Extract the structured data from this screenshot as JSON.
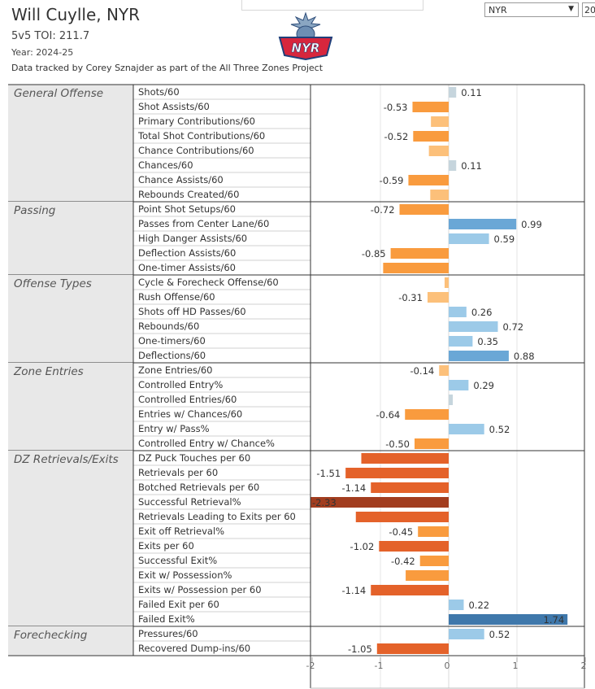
{
  "header": {
    "player": "Will Cuylle, NYR",
    "toi": "5v5 TOI: 211.7",
    "year": "Year: 2024-25",
    "credit": "Data tracked by Corey Sznajder as part of the All Three Zones Project"
  },
  "filters": {
    "team": "NYR",
    "year_partial": "20"
  },
  "logo": {
    "text": "NYR"
  },
  "colors": {
    "pos_light": "#9ccae8",
    "pos_mid": "#6aa7d6",
    "pos_dark": "#3f78ab",
    "neg_light": "#fcc07a",
    "neg_mid": "#f99b3e",
    "neg_dark": "#e4622a",
    "neg_deepest": "#a23d1f",
    "neutral": "#c6d5dd"
  },
  "chart_data": {
    "type": "bar",
    "orientation": "horizontal",
    "xlim": [
      -2,
      2
    ],
    "x_ticks": [
      "-2",
      "-1",
      "0",
      "1",
      "2"
    ],
    "groups": [
      {
        "name": "General Offense",
        "metrics": [
          {
            "label": "Shots/60",
            "value": 0.11,
            "value_label": "0.11"
          },
          {
            "label": "Shot Assists/60",
            "value": -0.53,
            "value_label": "-0.53"
          },
          {
            "label": "Primary Contributions/60",
            "value": -0.26,
            "value_label": ""
          },
          {
            "label": "Total Shot Contributions/60",
            "value": -0.52,
            "value_label": "-0.52"
          },
          {
            "label": "Chance Contributions/60",
            "value": -0.29,
            "value_label": ""
          },
          {
            "label": "Chances/60",
            "value": 0.11,
            "value_label": "0.11"
          },
          {
            "label": "Chance Assists/60",
            "value": -0.59,
            "value_label": "-0.59"
          },
          {
            "label": "Rebounds Created/60",
            "value": -0.27,
            "value_label": ""
          }
        ]
      },
      {
        "name": "Passing",
        "metrics": [
          {
            "label": "Point Shot Setups/60",
            "value": -0.72,
            "value_label": "-0.72"
          },
          {
            "label": "Passes from Center Lane/60",
            "value": 0.99,
            "value_label": "0.99"
          },
          {
            "label": "High Danger Assists/60",
            "value": 0.59,
            "value_label": "0.59"
          },
          {
            "label": "Deflection Assists/60",
            "value": -0.85,
            "value_label": "-0.85"
          },
          {
            "label": "One-timer Assists/60",
            "value": -0.96,
            "value_label": ""
          }
        ]
      },
      {
        "name": "Offense Types",
        "metrics": [
          {
            "label": "Cycle & Forecheck Offense/60",
            "value": -0.06,
            "value_label": ""
          },
          {
            "label": "Rush Offense/60",
            "value": -0.31,
            "value_label": "-0.31"
          },
          {
            "label": "Shots off HD Passes/60",
            "value": 0.26,
            "value_label": "0.26"
          },
          {
            "label": "Rebounds/60",
            "value": 0.72,
            "value_label": "0.72"
          },
          {
            "label": "One-timers/60",
            "value": 0.35,
            "value_label": "0.35"
          },
          {
            "label": "Deflections/60",
            "value": 0.88,
            "value_label": "0.88"
          }
        ]
      },
      {
        "name": "Zone Entries",
        "metrics": [
          {
            "label": "Zone Entries/60",
            "value": -0.14,
            "value_label": "-0.14"
          },
          {
            "label": "Controlled Entry%",
            "value": 0.29,
            "value_label": "0.29"
          },
          {
            "label": "Controlled Entries/60",
            "value": 0.06,
            "value_label": ""
          },
          {
            "label": "Entries w/ Chances/60",
            "value": -0.64,
            "value_label": "-0.64"
          },
          {
            "label": "Entry w/ Pass%",
            "value": 0.52,
            "value_label": "0.52"
          },
          {
            "label": "Controlled Entry w/ Chance%",
            "value": -0.5,
            "value_label": "-0.50"
          }
        ]
      },
      {
        "name": "DZ Retrievals/Exits",
        "metrics": [
          {
            "label": "DZ Puck Touches per 60",
            "value": -1.28,
            "value_label": ""
          },
          {
            "label": "Retrievals per 60",
            "value": -1.51,
            "value_label": "-1.51"
          },
          {
            "label": "Botched Retrievals per 60",
            "value": -1.14,
            "value_label": "-1.14"
          },
          {
            "label": "Successful Retrieval%",
            "value": -2.33,
            "value_label": "-2.33"
          },
          {
            "label": "Retrievals Leading to Exits per 60",
            "value": -1.36,
            "value_label": ""
          },
          {
            "label": "Exit off Retrieval%",
            "value": -0.45,
            "value_label": "-0.45"
          },
          {
            "label": "Exits per 60",
            "value": -1.02,
            "value_label": "-1.02"
          },
          {
            "label": "Successful Exit%",
            "value": -0.42,
            "value_label": "-0.42"
          },
          {
            "label": "Exit w/ Possession%",
            "value": -0.63,
            "value_label": ""
          },
          {
            "label": "Exits w/ Possession per 60",
            "value": -1.14,
            "value_label": "-1.14"
          },
          {
            "label": "Failed Exit per 60",
            "value": 0.22,
            "value_label": "0.22"
          },
          {
            "label": "Failed Exit%",
            "value": 1.74,
            "value_label": "1.74"
          }
        ]
      },
      {
        "name": "Forechecking",
        "metrics": [
          {
            "label": "Pressures/60",
            "value": 0.52,
            "value_label": "0.52"
          },
          {
            "label": "Recovered Dump-ins/60",
            "value": -1.05,
            "value_label": "-1.05"
          }
        ]
      }
    ]
  }
}
